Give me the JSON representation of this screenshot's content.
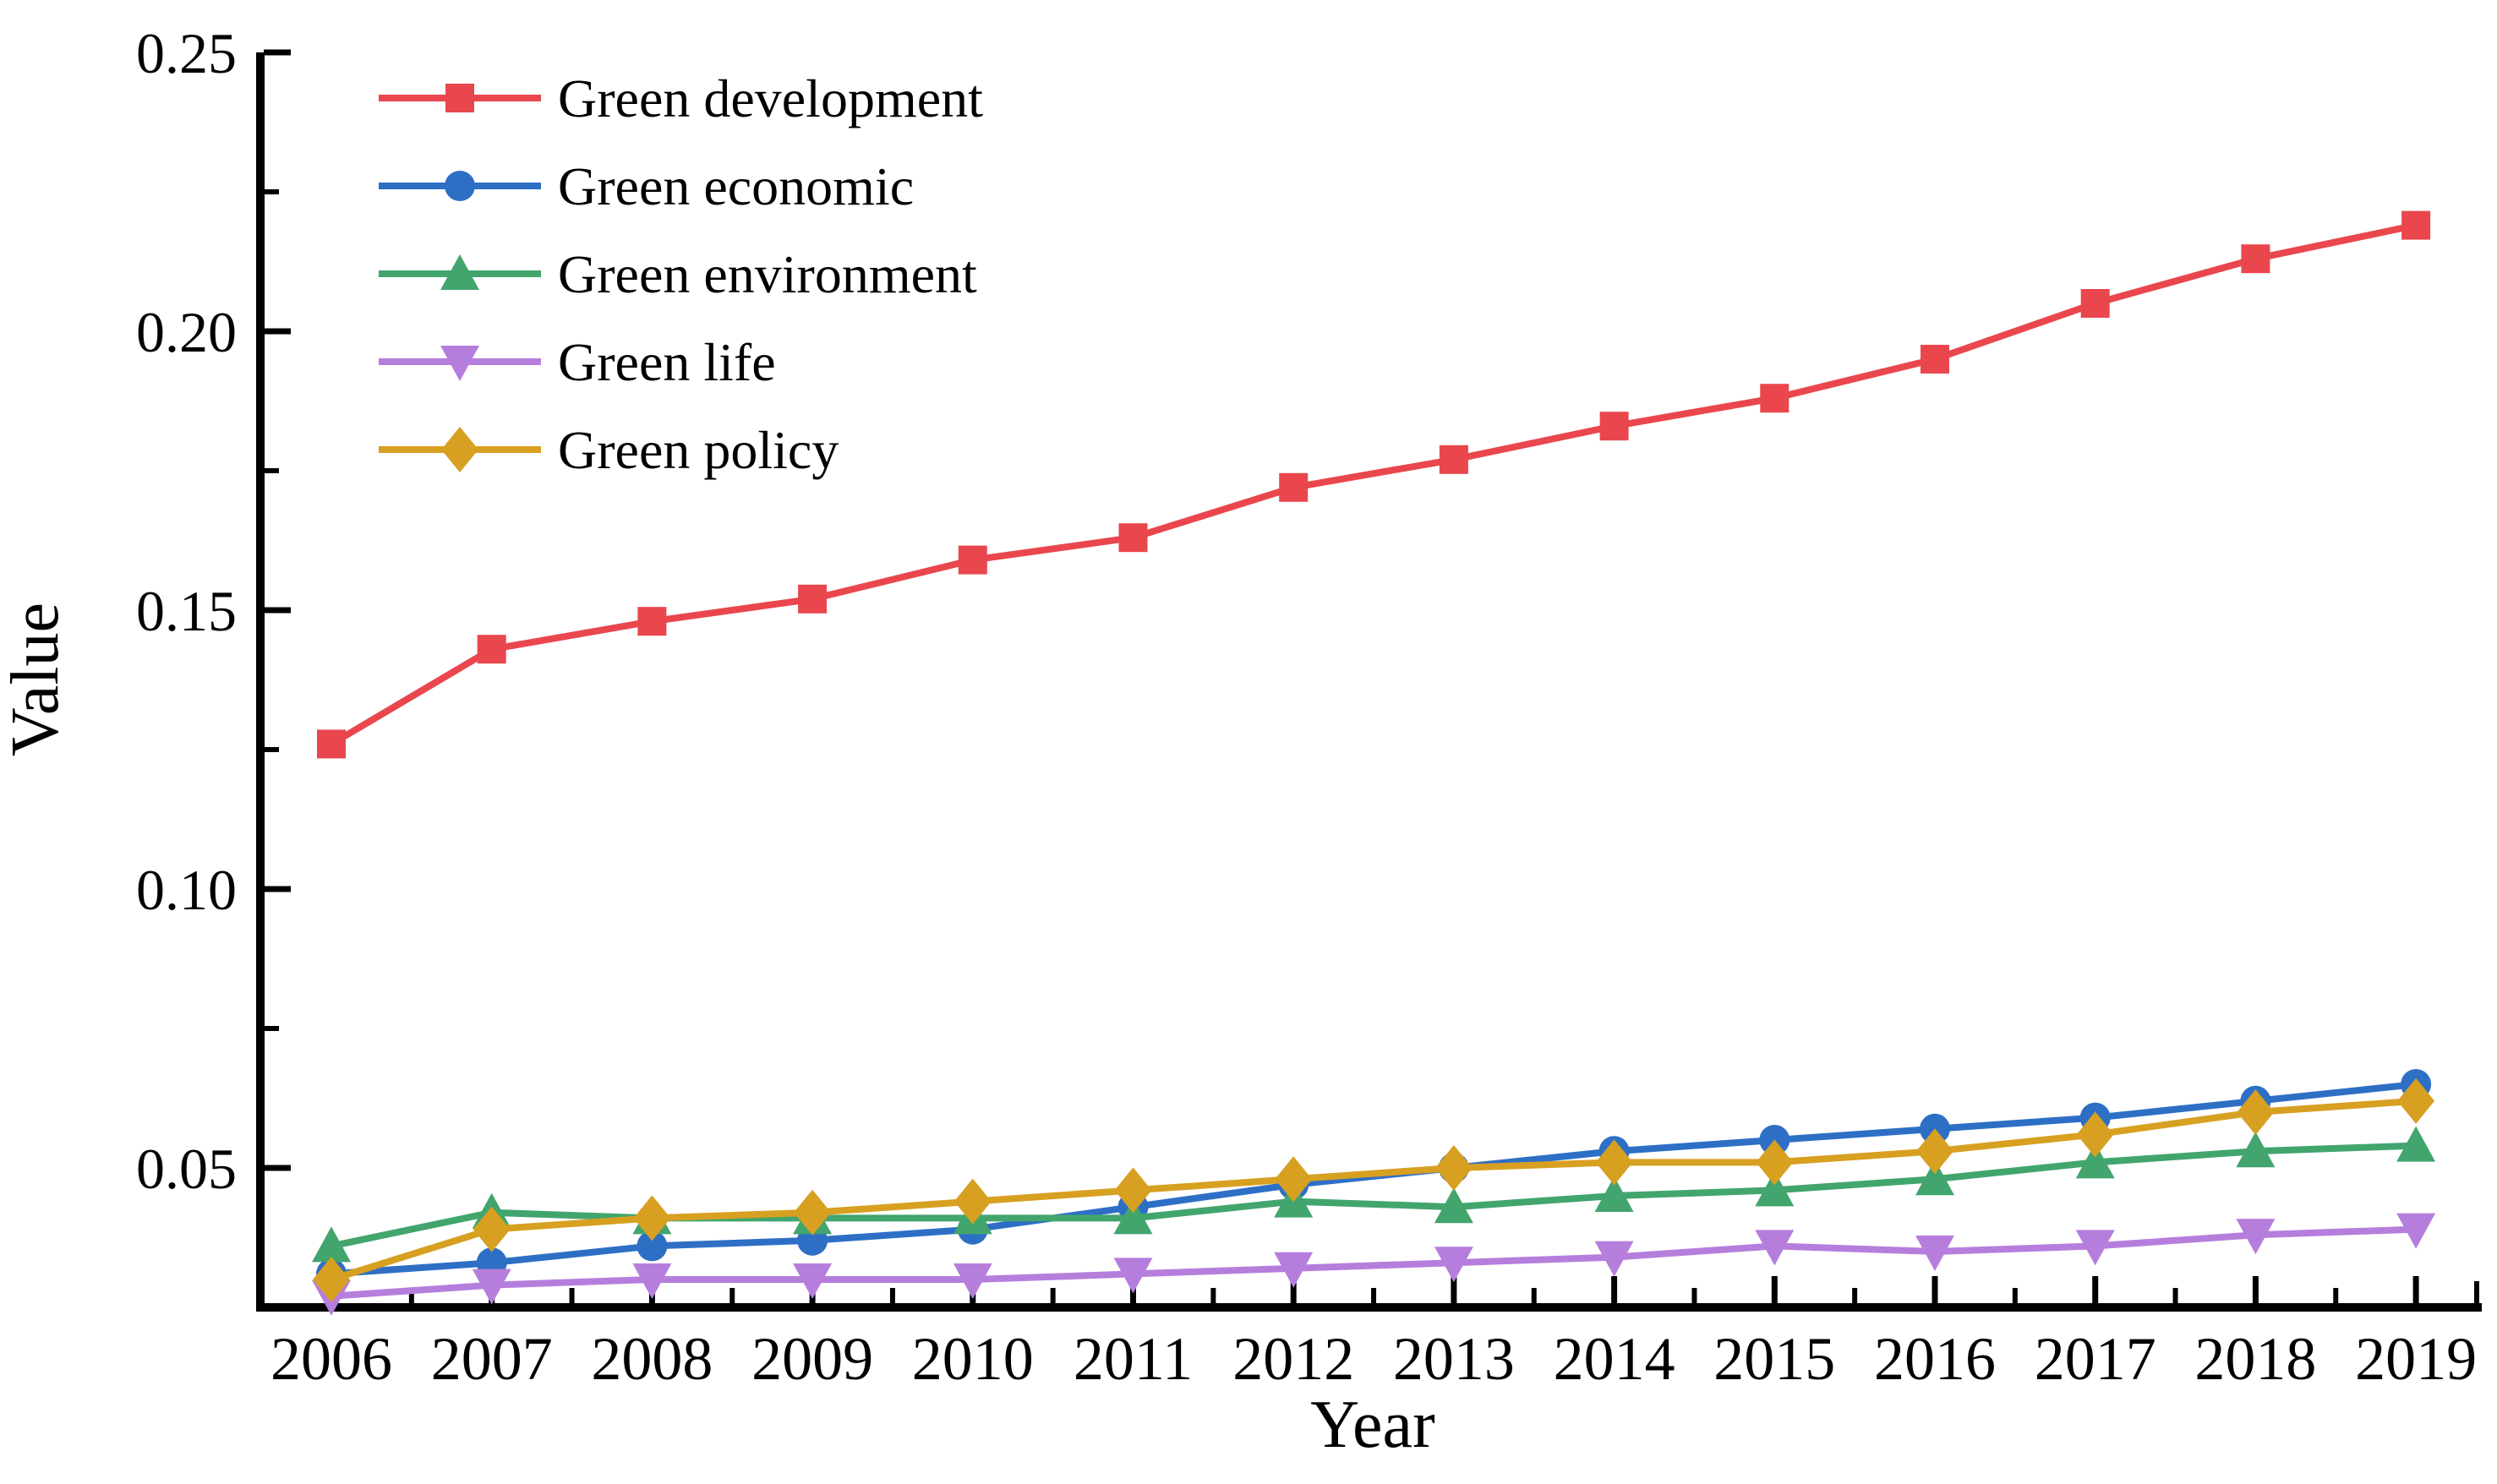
{
  "chart_data": {
    "type": "line",
    "title": "",
    "xlabel": "Year",
    "ylabel": "Value",
    "x": [
      2006,
      2007,
      2008,
      2009,
      2010,
      2011,
      2012,
      2013,
      2014,
      2015,
      2016,
      2017,
      2018,
      2019
    ],
    "xtick_labels": [
      "2006",
      "2007",
      "2008",
      "2009",
      "2010",
      "2011",
      "2012",
      "2013",
      "2014",
      "2015",
      "2016",
      "2017",
      "2018",
      "2019"
    ],
    "ylim": [
      0.025,
      0.25
    ],
    "yticks": [
      0.05,
      0.1,
      0.15,
      0.2,
      0.25
    ],
    "ytick_labels": [
      "0.05",
      "0.10",
      "0.15",
      "0.20",
      "0.25"
    ],
    "grid": false,
    "legend_position": "top-left-inside",
    "background_color": "#ffffff",
    "axis_color": "#000000",
    "series": [
      {
        "name": "Green development",
        "marker": "square",
        "color": "#e9474d",
        "values": [
          0.126,
          0.143,
          0.148,
          0.152,
          0.159,
          0.163,
          0.172,
          0.177,
          0.183,
          0.188,
          0.195,
          0.205,
          0.213,
          0.219
        ]
      },
      {
        "name": "Green economic",
        "marker": "circle",
        "color": "#2e6fc6",
        "values": [
          0.031,
          0.033,
          0.036,
          0.037,
          0.039,
          0.043,
          0.047,
          0.05,
          0.053,
          0.055,
          0.057,
          0.059,
          0.062,
          0.065
        ]
      },
      {
        "name": "Green environment",
        "marker": "triangle-up",
        "color": "#42a56e",
        "values": [
          0.036,
          0.042,
          0.041,
          0.041,
          0.041,
          0.041,
          0.044,
          0.043,
          0.045,
          0.046,
          0.048,
          0.051,
          0.053,
          0.054
        ]
      },
      {
        "name": "Green life",
        "marker": "triangle-down",
        "color": "#b67edc",
        "values": [
          0.027,
          0.029,
          0.03,
          0.03,
          0.03,
          0.031,
          0.032,
          0.033,
          0.034,
          0.036,
          0.035,
          0.036,
          0.038,
          0.039
        ]
      },
      {
        "name": "Green policy",
        "marker": "diamond",
        "color": "#d7a021",
        "values": [
          0.03,
          0.039,
          0.041,
          0.042,
          0.044,
          0.046,
          0.048,
          0.05,
          0.051,
          0.051,
          0.053,
          0.056,
          0.06,
          0.062
        ]
      }
    ]
  }
}
